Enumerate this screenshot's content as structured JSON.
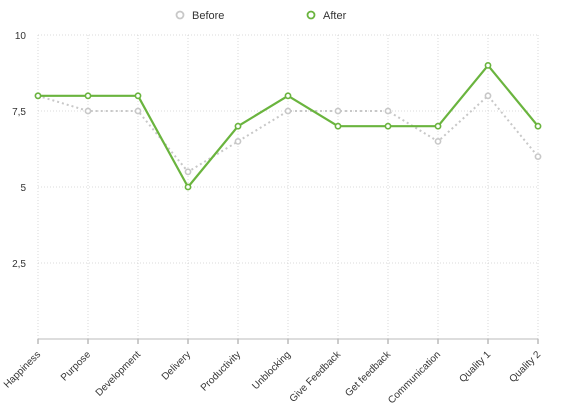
{
  "chart_data": {
    "type": "line",
    "categories": [
      "Happiness",
      "Purpose",
      "Development",
      "Delivery",
      "Productivity",
      "Unblocking",
      "Give Feedback",
      "Get feedback",
      "Communication",
      "Quality 1",
      "Quality 2"
    ],
    "series": [
      {
        "name": "Before",
        "values": [
          8,
          7.5,
          7.5,
          5.5,
          6.5,
          7.5,
          7.5,
          7.5,
          6.5,
          8,
          6
        ],
        "color": "#c8c8c8",
        "style": "dotted"
      },
      {
        "name": "After",
        "values": [
          8,
          8,
          8,
          5,
          7,
          8,
          7,
          7,
          7,
          9,
          7
        ],
        "color": "#6ab43e",
        "style": "solid"
      }
    ],
    "ylim": [
      0,
      10
    ],
    "yticks": [
      {
        "value": 2.5,
        "label": "2,5"
      },
      {
        "value": 5,
        "label": "5"
      },
      {
        "value": 7.5,
        "label": "7,5"
      },
      {
        "value": 10,
        "label": "10"
      }
    ],
    "grid": true,
    "legend_position": "top-center"
  }
}
